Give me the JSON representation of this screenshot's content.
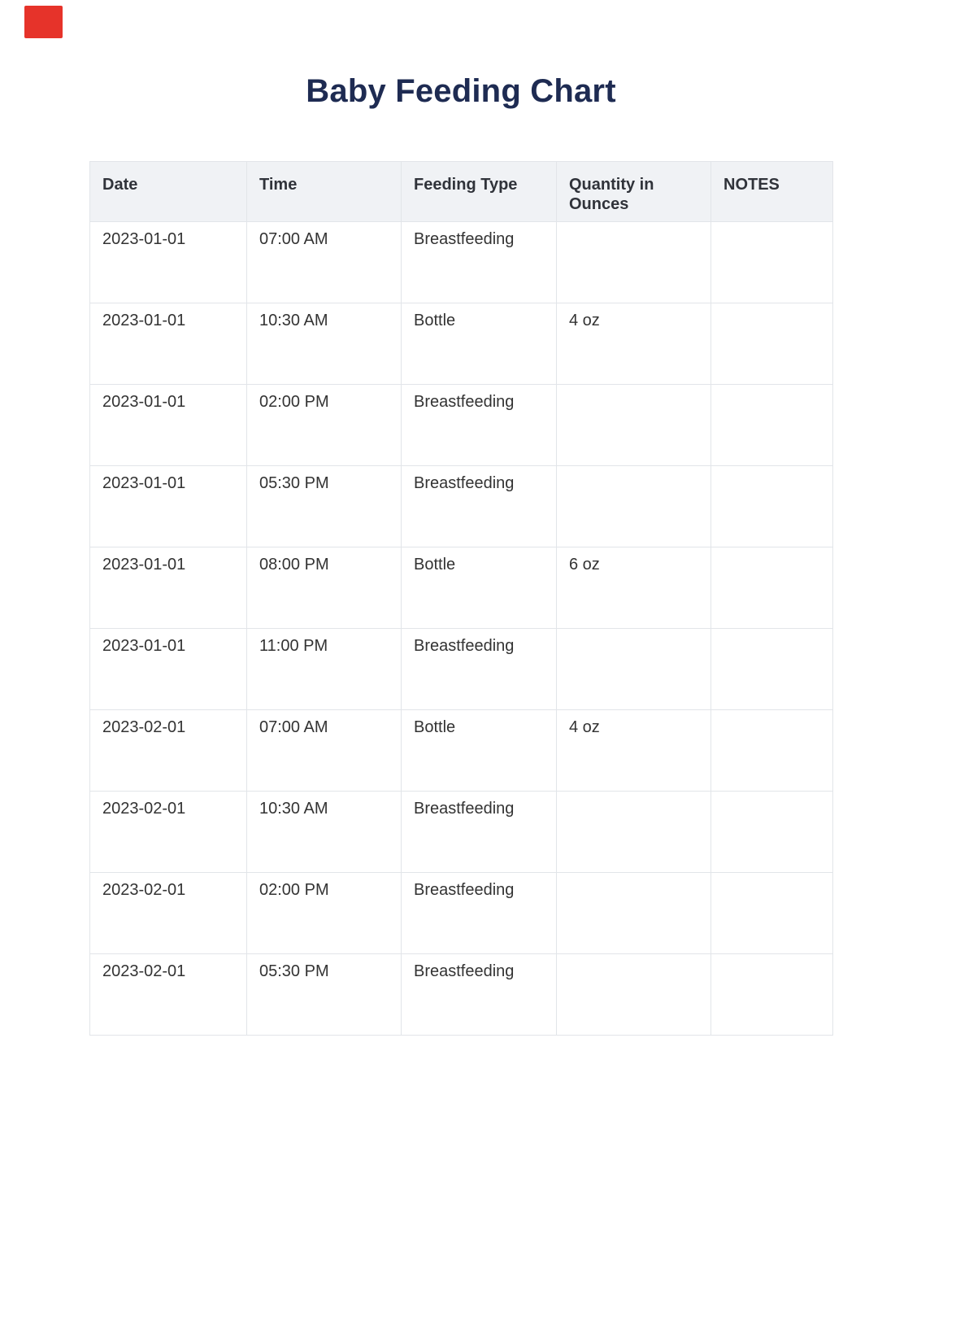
{
  "title": "Baby Feeding Chart",
  "decor": {
    "marker_color": "#e6332a"
  },
  "colors": {
    "title_text": "#1e2b52",
    "header_bg": "#f0f2f5",
    "header_text": "#30333a",
    "body_text": "#333333",
    "border": "#e2e5e9"
  },
  "table": {
    "columns": [
      "Date",
      "Time",
      "Feeding Type",
      "Quantity in Ounces",
      "NOTES"
    ],
    "rows": [
      [
        "2023-01-01",
        "07:00 AM",
        "Breastfeeding",
        "",
        ""
      ],
      [
        "2023-01-01",
        "10:30 AM",
        "Bottle",
        "4 oz",
        ""
      ],
      [
        "2023-01-01",
        "02:00 PM",
        "Breastfeeding",
        "",
        ""
      ],
      [
        "2023-01-01",
        "05:30 PM",
        "Breastfeeding",
        "",
        ""
      ],
      [
        "2023-01-01",
        "08:00 PM",
        "Bottle",
        "6 oz",
        ""
      ],
      [
        "2023-01-01",
        "11:00 PM",
        "Breastfeeding",
        "",
        ""
      ],
      [
        "2023-02-01",
        "07:00 AM",
        "Bottle",
        "4 oz",
        ""
      ],
      [
        "2023-02-01",
        "10:30 AM",
        "Breastfeeding",
        "",
        ""
      ],
      [
        "2023-02-01",
        "02:00 PM",
        "Breastfeeding",
        "",
        ""
      ],
      [
        "2023-02-01",
        "05:30 PM",
        "Breastfeeding",
        "",
        ""
      ]
    ]
  }
}
